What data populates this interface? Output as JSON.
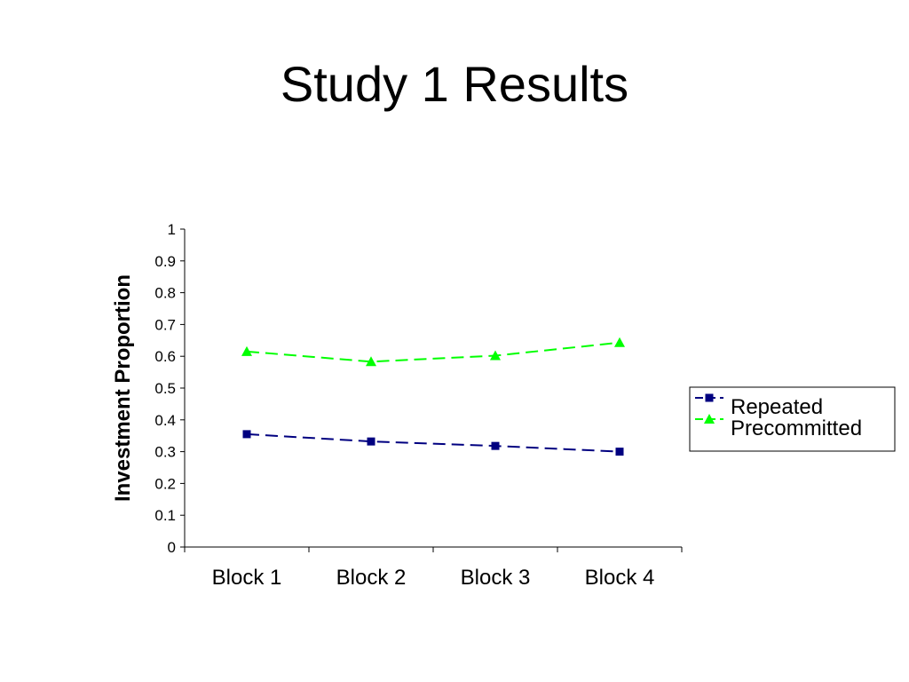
{
  "slide": {
    "title": "Study 1 Results"
  },
  "chart_data": {
    "type": "line",
    "title": "",
    "xlabel": "",
    "ylabel": "Investment Proportion",
    "categories": [
      "Block 1",
      "Block 2",
      "Block 3",
      "Block 4"
    ],
    "ylim": [
      0,
      1
    ],
    "yticks": [
      "0",
      "0.1",
      "0.2",
      "0.3",
      "0.4",
      "0.5",
      "0.6",
      "0.7",
      "0.8",
      "0.9",
      "1"
    ],
    "grid": false,
    "legend_position": "right",
    "series": [
      {
        "name": "Repeated",
        "values": [
          0.355,
          0.332,
          0.318,
          0.3
        ],
        "color": "#000080",
        "marker": "square",
        "line_style": "dashed"
      },
      {
        "name": "Precommitted",
        "values": [
          0.615,
          0.583,
          0.602,
          0.643
        ],
        "color": "#00ff00",
        "marker": "triangle",
        "line_style": "dashed"
      }
    ]
  }
}
